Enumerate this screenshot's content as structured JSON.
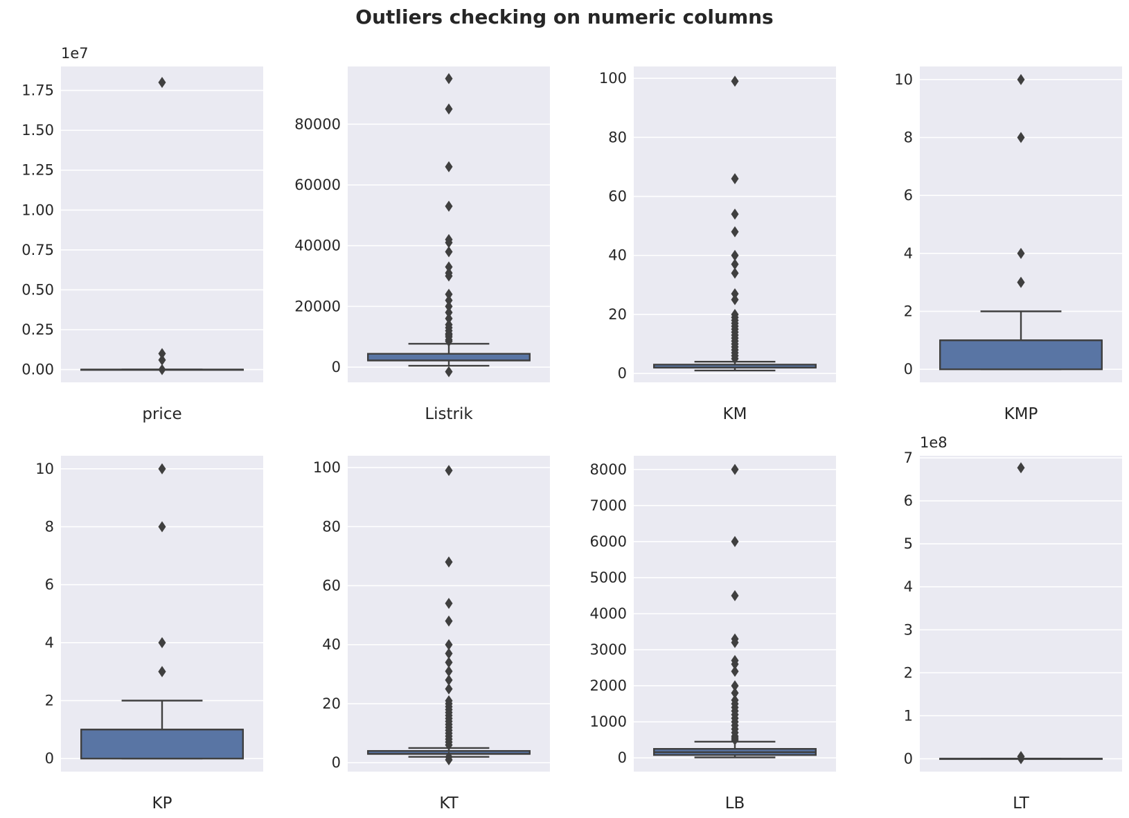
{
  "title": "Outliers checking on numeric columns",
  "style": {
    "panel_bg": "#eaeaf2",
    "grid_color": "#ffffff",
    "box_fill": "#5975a4",
    "line_color": "#3f3f3f",
    "text_color": "#262626"
  },
  "chart_data": [
    {
      "type": "boxplot",
      "xlabel": "price",
      "ylim": [
        -800000,
        19000000
      ],
      "offset_label": "1e7",
      "ticks": [
        0,
        2500000,
        5000000,
        7500000,
        10000000,
        12500000,
        15000000,
        17500000
      ],
      "tick_labels": [
        "0.00",
        "0.25",
        "0.50",
        "0.75",
        "1.00",
        "1.25",
        "1.50",
        "1.75"
      ],
      "box": {
        "whisker_low": 0,
        "q1": 0,
        "median": 0,
        "q3": 0,
        "whisker_high": 0
      },
      "outliers": [
        18000000,
        1000000,
        600000,
        0
      ]
    },
    {
      "type": "boxplot",
      "xlabel": "Listrik",
      "ylim": [
        -5000,
        99000
      ],
      "offset_label": "",
      "ticks": [
        0,
        20000,
        40000,
        60000,
        80000
      ],
      "tick_labels": [
        "0",
        "20000",
        "40000",
        "60000",
        "80000"
      ],
      "box": {
        "whisker_low": 450,
        "q1": 2200,
        "median": 2200,
        "q3": 4400,
        "whisker_high": 7700
      },
      "outliers": [
        95000,
        85000,
        66000,
        53000,
        42000,
        41000,
        38000,
        33000,
        31000,
        30000,
        24000,
        22000,
        20000,
        18000,
        16000,
        14000,
        13000,
        12000,
        11000,
        10600,
        10000,
        9000,
        8500,
        -1500
      ]
    },
    {
      "type": "boxplot",
      "xlabel": "KM",
      "ylim": [
        -3,
        104
      ],
      "offset_label": "",
      "ticks": [
        0,
        20,
        40,
        60,
        80,
        100
      ],
      "tick_labels": [
        "0",
        "20",
        "40",
        "60",
        "80",
        "100"
      ],
      "box": {
        "whisker_low": 1,
        "q1": 2,
        "median": 2,
        "q3": 3,
        "whisker_high": 4
      },
      "outliers": [
        99,
        66,
        54,
        48,
        40,
        37,
        34,
        27,
        25,
        20,
        19,
        18,
        17,
        16,
        15,
        14,
        13,
        12,
        11,
        10,
        9,
        8,
        7,
        6,
        5
      ]
    },
    {
      "type": "boxplot",
      "xlabel": "KMP",
      "ylim": [
        -0.45,
        10.45
      ],
      "offset_label": "",
      "ticks": [
        0,
        2,
        4,
        6,
        8,
        10
      ],
      "tick_labels": [
        "0",
        "2",
        "4",
        "6",
        "8",
        "10"
      ],
      "box": {
        "whisker_low": 0,
        "q1": 0,
        "median": 1,
        "q3": 1,
        "whisker_high": 2
      },
      "outliers": [
        10,
        8,
        4,
        3,
        3
      ]
    },
    {
      "type": "boxplot",
      "xlabel": "KP",
      "ylim": [
        -0.45,
        10.45
      ],
      "offset_label": "",
      "ticks": [
        0,
        2,
        4,
        6,
        8,
        10
      ],
      "tick_labels": [
        "0",
        "2",
        "4",
        "6",
        "8",
        "10"
      ],
      "box": {
        "whisker_low": 0,
        "q1": 0,
        "median": 1,
        "q3": 1,
        "whisker_high": 2
      },
      "outliers": [
        10,
        8,
        4,
        3,
        3
      ]
    },
    {
      "type": "boxplot",
      "xlabel": "KT",
      "ylim": [
        -3,
        104
      ],
      "offset_label": "",
      "ticks": [
        0,
        20,
        40,
        60,
        80,
        100
      ],
      "tick_labels": [
        "0",
        "20",
        "40",
        "60",
        "80",
        "100"
      ],
      "box": {
        "whisker_low": 2,
        "q1": 3,
        "median": 3,
        "q3": 4,
        "whisker_high": 5
      },
      "outliers": [
        99,
        68,
        54,
        48,
        40,
        37,
        34,
        31,
        28,
        25,
        21,
        20,
        19,
        18,
        17,
        16,
        15,
        14,
        13,
        12,
        11,
        10,
        9,
        8,
        7,
        6,
        2,
        1
      ]
    },
    {
      "type": "boxplot",
      "xlabel": "LB",
      "ylim": [
        -380,
        8380
      ],
      "offset_label": "",
      "ticks": [
        0,
        1000,
        2000,
        3000,
        4000,
        5000,
        6000,
        7000,
        8000
      ],
      "tick_labels": [
        "0",
        "1000",
        "2000",
        "3000",
        "4000",
        "5000",
        "6000",
        "7000",
        "8000"
      ],
      "box": {
        "whisker_low": 14,
        "q1": 80,
        "median": 160,
        "q3": 250,
        "whisker_high": 450
      },
      "outliers": [
        8000,
        6000,
        4500,
        3300,
        3200,
        2700,
        2600,
        2400,
        2000,
        1800,
        1600,
        1500,
        1400,
        1300,
        1200,
        1100,
        1000,
        900,
        800,
        700,
        600,
        550,
        500
      ]
    },
    {
      "type": "boxplot",
      "xlabel": "LT",
      "ylim": [
        -30000000,
        705000000
      ],
      "offset_label": "1e8",
      "ticks": [
        0,
        100000000,
        200000000,
        300000000,
        400000000,
        500000000,
        600000000,
        700000000
      ],
      "tick_labels": [
        "0",
        "1",
        "2",
        "3",
        "4",
        "5",
        "6",
        "7"
      ],
      "box": {
        "whisker_low": 0,
        "q1": 0,
        "median": 0,
        "q3": 0,
        "whisker_high": 0
      },
      "outliers": [
        677000000,
        5000000,
        0
      ]
    }
  ]
}
